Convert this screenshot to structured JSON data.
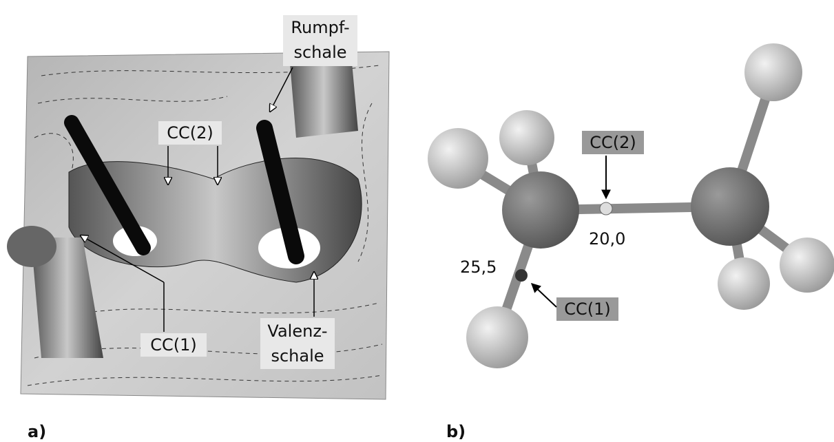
{
  "panel_a": {
    "label": "a)",
    "annotations": {
      "core_shell": [
        "Rumpf-",
        "schale"
      ],
      "cc2": "CC(2)",
      "cc1": "CC(1)",
      "valence_shell": [
        "Valenz-",
        "schale"
      ]
    }
  },
  "panel_b": {
    "label": "b)",
    "cc2": "CC(2)",
    "cc1": "CC(1)",
    "value_cc2": "20,0",
    "value_cc1": "25,5"
  }
}
